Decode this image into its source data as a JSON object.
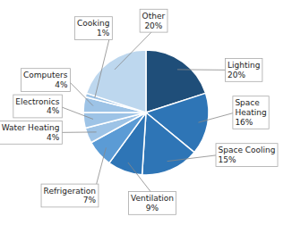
{
  "chart_data": {
    "type": "pie",
    "categories": [
      "Lighting",
      "Space\nHeating",
      "Space Cooling",
      "Ventilation",
      "Refrigeration",
      "Water Heating",
      "Electronics",
      "Computers",
      "Cooking",
      "Other"
    ],
    "values": [
      20,
      16,
      15,
      9,
      7,
      4,
      4,
      4,
      1,
      20
    ],
    "value_labels": [
      "20%",
      "16%",
      "15%",
      "9%",
      "7%",
      "4%",
      "4%",
      "4%",
      "1%",
      "20%"
    ],
    "colors": [
      "#1f4e79",
      "#2e75b6",
      "#2e75b6",
      "#2e75b6",
      "#5b9bd5",
      "#9dc3e6",
      "#9dc3e6",
      "#9dc3e6",
      "#9dc3e6",
      "#bdd7ee"
    ],
    "data_labels": true
  }
}
